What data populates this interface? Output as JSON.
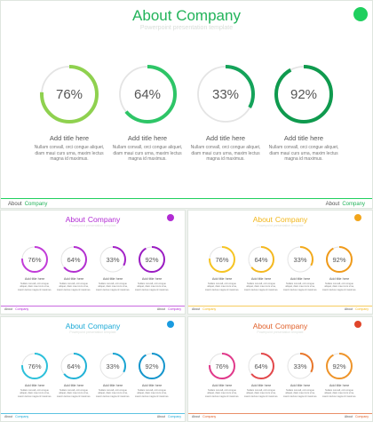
{
  "title_word1": "About",
  "title_word2": "Company",
  "subtitle": "Powerpoint presentation template",
  "footer_word1": "About",
  "footer_word2": "Company",
  "card_title": "Add title here",
  "card_body": "Nullam convall, orci congue aliquet, diam maui curs urna, maxim lectus magna id maximus.",
  "progress": [
    {
      "label": "76%",
      "value": 76
    },
    {
      "label": "64%",
      "value": 64
    },
    {
      "label": "33%",
      "value": 33
    },
    {
      "label": "92%",
      "value": 92
    }
  ],
  "themes": [
    {
      "slide": "main",
      "accent": "#22b35a",
      "dot": "#1fcf5e",
      "rings": [
        "#8fd14f",
        "#2ec567",
        "#14a35a",
        "#0f9a4e"
      ]
    },
    {
      "slide": "purple",
      "accent": "#b12bd3",
      "dot": "#b12bd3",
      "rings": [
        "#c13bd8",
        "#b22fd0",
        "#a323c7",
        "#9a1cc2"
      ]
    },
    {
      "slide": "yellow",
      "accent": "#f2b61b",
      "dot": "#f2a51b",
      "rings": [
        "#f6c423",
        "#f4b81f",
        "#f2aa1c",
        "#ef9a1a"
      ]
    },
    {
      "slide": "blue",
      "accent": "#1aa9d6",
      "dot": "#1a9be0",
      "rings": [
        "#2cc0da",
        "#21b2d6",
        "#19a4d2",
        "#1495cc"
      ]
    },
    {
      "slide": "orange",
      "accent": "#e0602a",
      "dot": "#e0452a",
      "rings": [
        "#e0388a",
        "#e2474a",
        "#e8762a",
        "#ee942a"
      ]
    }
  ]
}
